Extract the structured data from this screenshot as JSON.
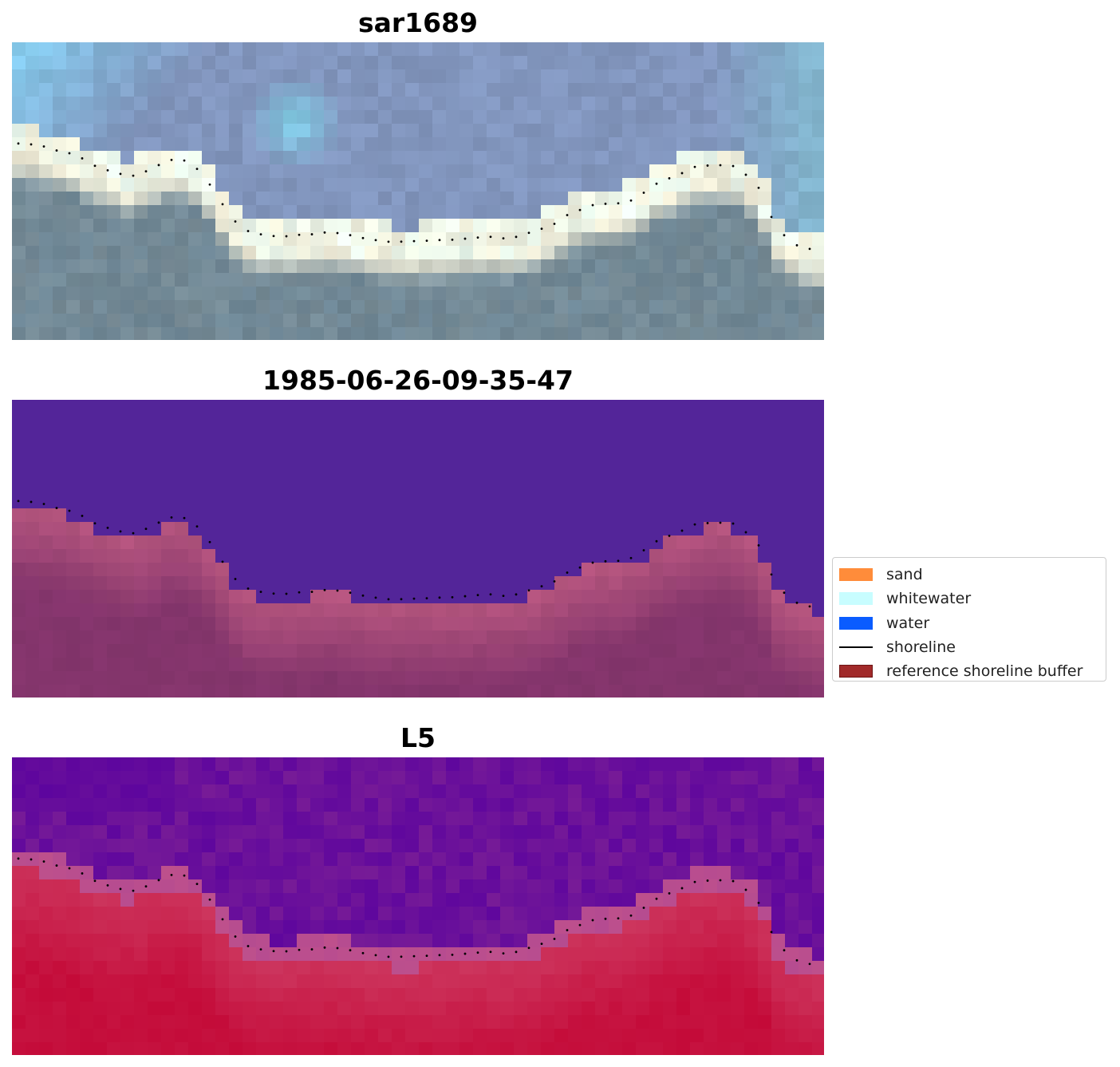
{
  "panels": [
    {
      "id": "rgb",
      "title": "sar1689"
    },
    {
      "id": "classified",
      "title": "1985-06-26-09-35-47"
    },
    {
      "id": "index",
      "title": "L5"
    }
  ],
  "legend": {
    "items": [
      {
        "label": "sand",
        "color": "#ff8c3a",
        "kind": "patch"
      },
      {
        "label": "whitewater",
        "color": "#c8fdff",
        "kind": "patch"
      },
      {
        "label": "water",
        "color": "#0a5cff",
        "kind": "patch"
      },
      {
        "label": "shoreline",
        "color": "#000000",
        "kind": "line"
      },
      {
        "label": "reference shoreline buffer",
        "color": "#a12a2a",
        "edge": "#6e1414",
        "kind": "patch"
      }
    ]
  },
  "colors": {
    "classified_water": "#532599",
    "classified_land": "#b8577f",
    "classified_land_dark": "#84356c",
    "index_low": "#5c049e",
    "index_high": "#c40a38",
    "shoreline_points": "#000000"
  }
}
